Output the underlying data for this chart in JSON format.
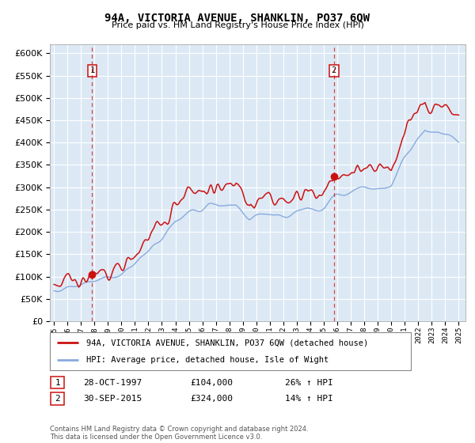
{
  "title": "94A, VICTORIA AVENUE, SHANKLIN, PO37 6QW",
  "subtitle": "Price paid vs. HM Land Registry's House Price Index (HPI)",
  "plot_bg_color": "#dce9f5",
  "red_line_label": "94A, VICTORIA AVENUE, SHANKLIN, PO37 6QW (detached house)",
  "blue_line_label": "HPI: Average price, detached house, Isle of Wight",
  "sale1_date": "28-OCT-1997",
  "sale1_price": 104000,
  "sale1_pct": "26%",
  "sale2_date": "30-SEP-2015",
  "sale2_price": 324000,
  "sale2_pct": "14%",
  "ylim": [
    0,
    620000
  ],
  "yticks": [
    0,
    50000,
    100000,
    150000,
    200000,
    250000,
    300000,
    350000,
    400000,
    450000,
    500000,
    550000,
    600000
  ],
  "footer": "Contains HM Land Registry data © Crown copyright and database right 2024.\nThis data is licensed under the Open Government Licence v3.0.",
  "sale1_year": 1997.83,
  "sale2_year": 2015.75,
  "grid_color": "#cccccc",
  "spine_color": "#aaaaaa"
}
